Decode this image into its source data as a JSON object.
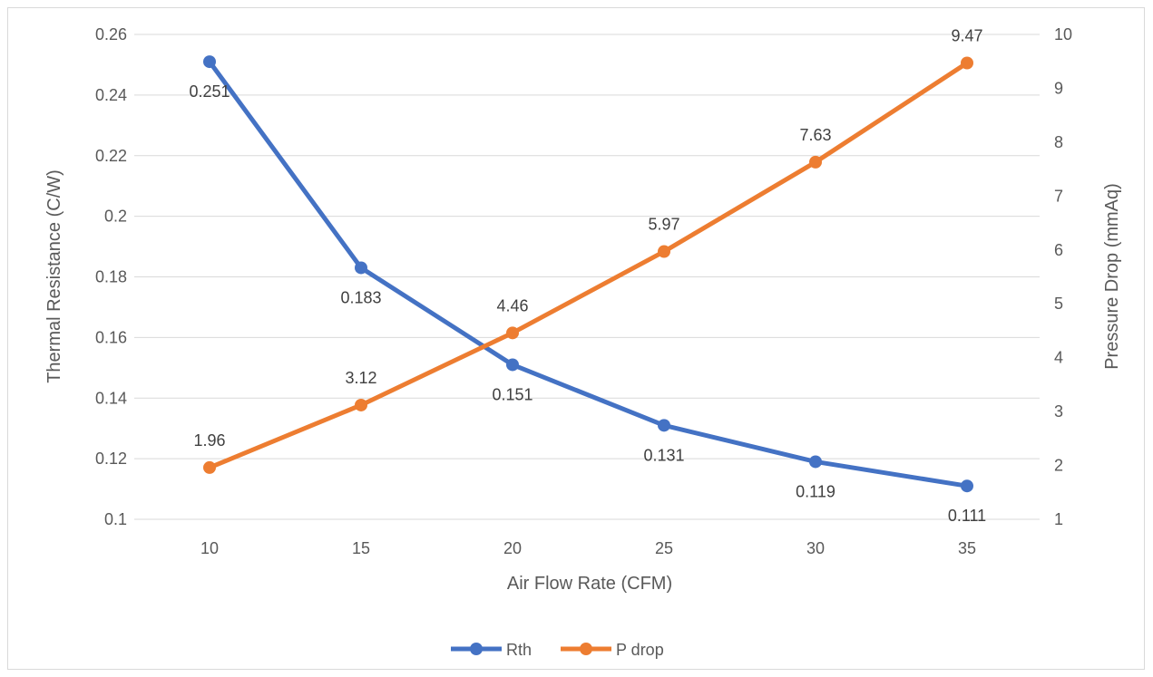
{
  "chart_data": {
    "type": "line",
    "title": "",
    "xlabel": "Air Flow Rate (CFM)",
    "ylabel": "Thermal Resistance (C/W)",
    "y2label": "Pressure Drop (mmAq)",
    "categories": [
      "10",
      "15",
      "20",
      "25",
      "30",
      "35"
    ],
    "ylim": [
      0.1,
      0.26
    ],
    "yticks": [
      "0.1",
      "0.12",
      "0.14",
      "0.16",
      "0.18",
      "0.2",
      "0.22",
      "0.24",
      "0.26"
    ],
    "y2lim": [
      1,
      10
    ],
    "y2ticks": [
      "1",
      "2",
      "3",
      "4",
      "5",
      "6",
      "7",
      "8",
      "9",
      "10"
    ],
    "grid": true,
    "legend_position": "bottom",
    "series": [
      {
        "name": "Rth",
        "axis": "left",
        "color": "#4472C4",
        "values": [
          0.251,
          0.183,
          0.151,
          0.131,
          0.119,
          0.111
        ],
        "labels": [
          "0.251",
          "0.183",
          "0.151",
          "0.131",
          "0.119",
          "0.111"
        ]
      },
      {
        "name": "P drop",
        "axis": "right",
        "color": "#ED7D31",
        "values": [
          1.96,
          3.12,
          4.46,
          5.97,
          7.63,
          9.47
        ],
        "labels": [
          "1.96",
          "3.12",
          "4.46",
          "5.97",
          "7.63",
          "9.47"
        ]
      }
    ]
  }
}
